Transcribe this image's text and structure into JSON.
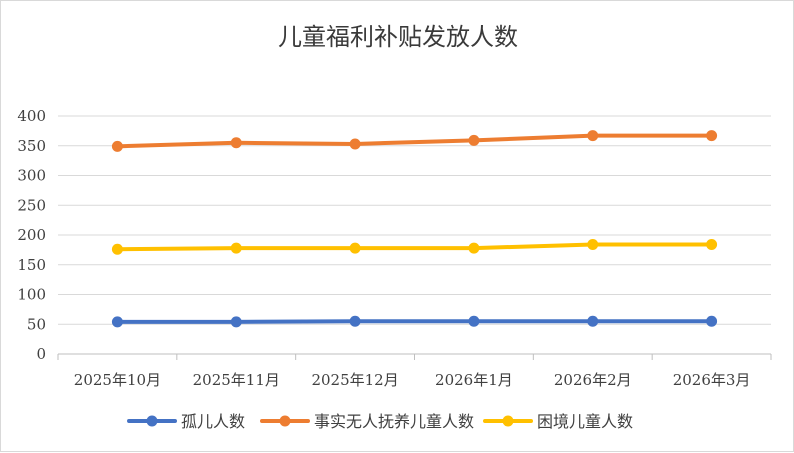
{
  "chart_data": {
    "type": "line",
    "title": "儿童福利补贴发放人数",
    "xlabel": "",
    "ylabel": "",
    "categories": [
      "2025年10月",
      "2025年11月",
      "2025年12月",
      "2026年1月",
      "2026年2月",
      "2026年3月"
    ],
    "ylim": [
      0,
      400
    ],
    "yticks": [
      "0",
      "50",
      "100",
      "150",
      "200",
      "250",
      "300",
      "350",
      "400"
    ],
    "grid": true,
    "legend": "bottom",
    "series": [
      {
        "name": "孤儿人数",
        "color": "#4472c4",
        "values": [
          54,
          54,
          55,
          55,
          55,
          55
        ]
      },
      {
        "name": "事实无人抚养儿童人数",
        "color": "#ed7d31",
        "values": [
          349,
          355,
          353,
          359,
          367,
          367
        ]
      },
      {
        "name": "困境儿童人数",
        "color": "#ffc000",
        "values": [
          176,
          178,
          178,
          178,
          184,
          184
        ]
      }
    ]
  }
}
